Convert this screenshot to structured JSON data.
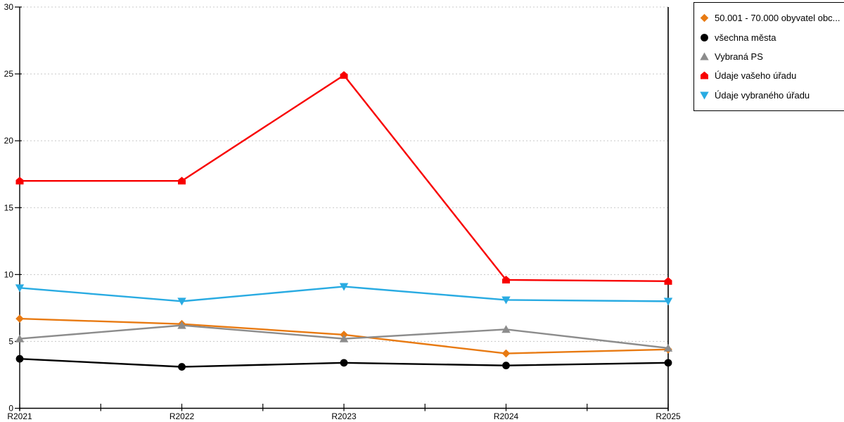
{
  "chart_data": {
    "type": "line",
    "title": "",
    "xlabel": "",
    "ylabel": "",
    "categories": [
      "R2021",
      "R2022",
      "R2023",
      "R2024",
      "R2025"
    ],
    "series": [
      {
        "name": "50.001 - 70.000 obyvatel obc...",
        "marker": "diamond",
        "color": "#E87A12",
        "values": [
          6.7,
          6.3,
          5.5,
          4.1,
          4.4
        ]
      },
      {
        "name": "všechna města",
        "marker": "circle",
        "color": "#000000",
        "values": [
          3.7,
          3.1,
          3.4,
          3.2,
          3.4
        ]
      },
      {
        "name": "Vybraná PS",
        "marker": "triangle-up",
        "color": "#8C8C8C",
        "values": [
          5.2,
          6.2,
          5.2,
          5.9,
          4.5
        ]
      },
      {
        "name": "Údaje vašeho úřadu",
        "marker": "house",
        "color": "#F80000",
        "values": [
          17.0,
          17.0,
          24.9,
          9.6,
          9.5
        ]
      },
      {
        "name": "Údaje vybraného úřadu",
        "marker": "triangle-down",
        "color": "#29ABE2",
        "values": [
          9.0,
          8.0,
          9.1,
          8.1,
          8.0
        ]
      }
    ],
    "ylim": [
      0,
      30
    ],
    "ytick_step": 5,
    "grid": "horizontal-dotted",
    "legend_position": "outside-top-right"
  },
  "axis": {
    "y_tick_labels": [
      "0",
      "5",
      "10",
      "15",
      "20",
      "25",
      "30"
    ],
    "x_tick_labels": [
      "R2021",
      "R2022",
      "R2023",
      "R2024",
      "R2025"
    ]
  },
  "colors": {
    "background": "#FFFFFF",
    "gridline": "#C8C8C8",
    "axis": "#000000",
    "legend_border": "#000000",
    "text": "#000000"
  }
}
